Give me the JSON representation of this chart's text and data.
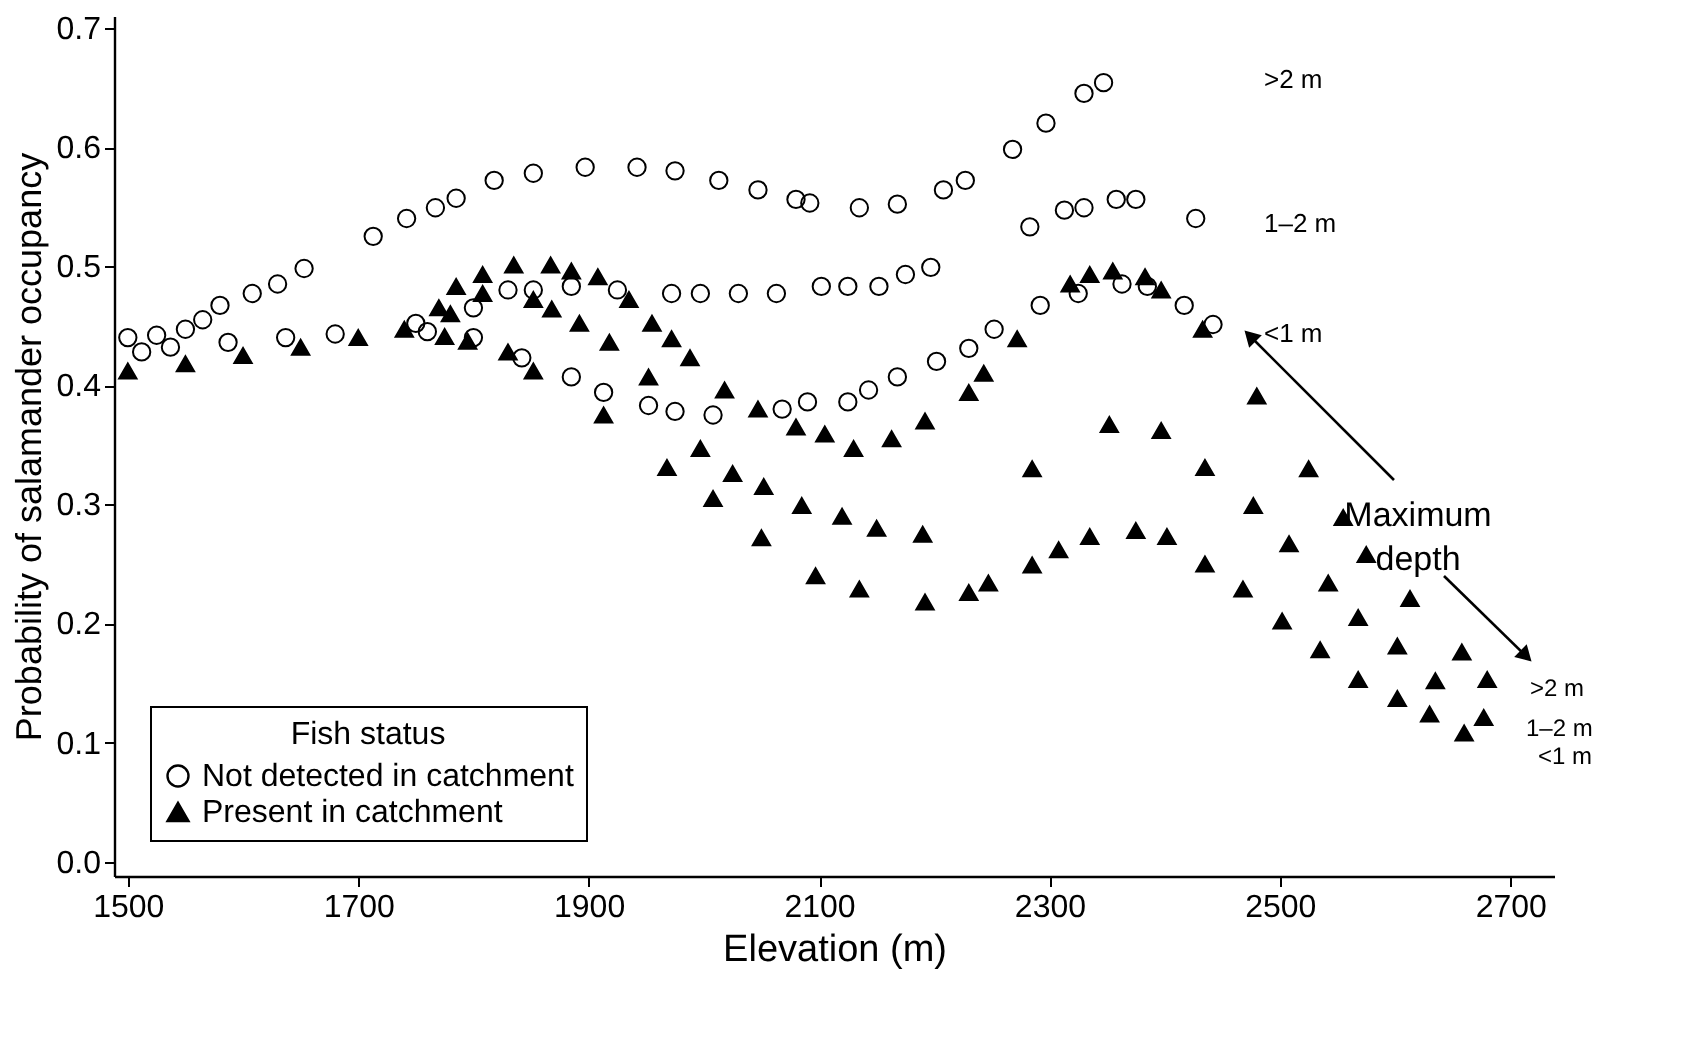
{
  "chart_data": {
    "type": "scatter",
    "xlabel": "Elevation (m)",
    "ylabel": "Probability of salamander occupancy",
    "legend_title": "Fish status",
    "xlim": [
      1488,
      2738
    ],
    "ylim": [
      -0.012,
      0.71
    ],
    "xticks": [
      1500,
      1700,
      1900,
      2100,
      2300,
      2500,
      2700
    ],
    "yticks": [
      {
        "value": 0,
        "label": "0.0"
      },
      0.1,
      0.2,
      0.3,
      0.4,
      0.5,
      0.6,
      0.7
    ],
    "grid": false,
    "legend": "bottom left",
    "series": [
      {
        "name": "Not detected in catchment",
        "color": "#000000",
        "marker": "circle",
        "x": [
          1500,
          1525,
          1550,
          1565,
          1580,
          1608,
          1630,
          1653,
          1713,
          1742,
          1767,
          1785,
          1818,
          1852,
          1897,
          1942,
          1975,
          2013,
          2047,
          2080,
          2092,
          2135,
          2168,
          2208,
          2227,
          2268,
          2297,
          2330,
          2347
        ],
        "values": [
          0.44,
          0.442,
          0.447,
          0.455,
          0.467,
          0.477,
          0.485,
          0.498,
          0.525,
          0.54,
          0.549,
          0.557,
          0.572,
          0.578,
          0.583,
          0.583,
          0.58,
          0.572,
          0.564,
          0.556,
          0.553,
          0.549,
          0.552,
          0.564,
          0.572,
          0.598,
          0.62,
          0.645,
          0.654
        ]
      },
      {
        "color": "#000000",
        "marker": "circle",
        "x": [
          1750,
          1800,
          1830,
          1852,
          1885,
          1925,
          1972,
          1997,
          2030,
          2063,
          2102,
          2125,
          2152,
          2175,
          2197,
          2283,
          2313,
          2330,
          2358,
          2375,
          2427
        ],
        "values": [
          0.452,
          0.465,
          0.48,
          0.48,
          0.483,
          0.48,
          0.477,
          0.477,
          0.477,
          0.477,
          0.483,
          0.483,
          0.483,
          0.493,
          0.499,
          0.533,
          0.547,
          0.549,
          0.556,
          0.556,
          0.54
        ]
      },
      {
        "color": "#000000",
        "marker": "circle",
        "x": [
          1512,
          1537,
          1587,
          1637,
          1680,
          1760,
          1800,
          1842,
          1885,
          1913,
          1952,
          1975,
          2008,
          2068,
          2090,
          2125,
          2143,
          2168,
          2202,
          2230,
          2252,
          2292,
          2325,
          2363,
          2385,
          2417,
          2442
        ],
        "values": [
          0.428,
          0.432,
          0.436,
          0.44,
          0.443,
          0.445,
          0.44,
          0.423,
          0.407,
          0.394,
          0.383,
          0.378,
          0.375,
          0.38,
          0.386,
          0.386,
          0.396,
          0.407,
          0.42,
          0.431,
          0.447,
          0.467,
          0.477,
          0.485,
          0.483,
          0.467,
          0.451
        ]
      },
      {
        "name": "Present in catchment",
        "color": "#000000",
        "marker": "triangle",
        "x": [
          1500,
          1550,
          1600,
          1650,
          1700,
          1740,
          1770,
          1785,
          1808,
          1835,
          1867,
          1885,
          1908,
          1935,
          1955,
          1972,
          1988,
          2018,
          2047,
          2080,
          2105,
          2130,
          2163,
          2192,
          2230,
          2243,
          2272,
          2318,
          2335,
          2355,
          2383,
          2397,
          2433,
          2480,
          2525,
          2555,
          2575,
          2613,
          2658,
          2680
        ],
        "values": [
          0.412,
          0.418,
          0.425,
          0.432,
          0.44,
          0.447,
          0.465,
          0.483,
          0.493,
          0.501,
          0.501,
          0.496,
          0.491,
          0.472,
          0.452,
          0.439,
          0.423,
          0.396,
          0.38,
          0.365,
          0.359,
          0.347,
          0.355,
          0.37,
          0.394,
          0.41,
          0.439,
          0.485,
          0.493,
          0.496,
          0.491,
          0.48,
          0.447,
          0.391,
          0.33,
          0.289,
          0.258,
          0.221,
          0.176,
          0.153
        ]
      },
      {
        "color": "#000000",
        "marker": "triangle",
        "x": [
          1780,
          1808,
          1852,
          1868,
          1892,
          1918,
          1952,
          1997,
          2025,
          2052,
          2085,
          2120,
          2150,
          2190,
          2285,
          2352,
          2397,
          2435,
          2477,
          2508,
          2542,
          2568,
          2602,
          2635,
          2677
        ],
        "values": [
          0.46,
          0.477,
          0.472,
          0.464,
          0.452,
          0.436,
          0.407,
          0.347,
          0.326,
          0.315,
          0.299,
          0.29,
          0.28,
          0.275,
          0.33,
          0.367,
          0.362,
          0.331,
          0.299,
          0.267,
          0.234,
          0.205,
          0.181,
          0.152,
          0.121
        ]
      },
      {
        "color": "#000000",
        "marker": "triangle",
        "x": [
          1775,
          1795,
          1830,
          1852,
          1913,
          1968,
          2008,
          2050,
          2097,
          2135,
          2192,
          2230,
          2247,
          2285,
          2308,
          2335,
          2375,
          2402,
          2435,
          2468,
          2502,
          2535,
          2568,
          2602,
          2630,
          2660
        ],
        "values": [
          0.441,
          0.437,
          0.428,
          0.412,
          0.375,
          0.331,
          0.305,
          0.272,
          0.24,
          0.229,
          0.218,
          0.226,
          0.234,
          0.249,
          0.262,
          0.273,
          0.278,
          0.273,
          0.25,
          0.229,
          0.202,
          0.178,
          0.153,
          0.137,
          0.124,
          0.108
        ]
      }
    ],
    "annotations": [
      ">2 m",
      "1–2 m",
      "<1 m",
      ">2 m",
      "1–2 m",
      "<1 m",
      "Maximum\ndepth"
    ]
  }
}
